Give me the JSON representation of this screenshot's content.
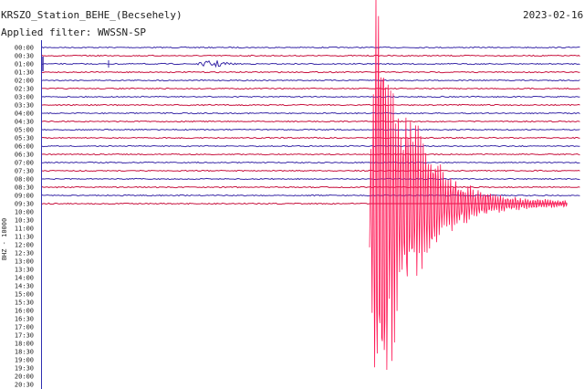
{
  "header": {
    "title": "KRSZO_Station_BEHE_(Becsehely)",
    "date": "2023-02-16",
    "filter": "Applied filter: WWSSN-SP"
  },
  "axis_label": "BHZ - 10000",
  "rows": [
    "00:00",
    "00:30",
    "01:00",
    "01:30",
    "02:00",
    "02:30",
    "03:00",
    "03:30",
    "04:00",
    "04:30",
    "05:00",
    "05:30",
    "06:00",
    "06:30",
    "07:00",
    "07:30",
    "08:00",
    "08:30",
    "09:00",
    "09:30",
    "10:00",
    "10:30",
    "11:00",
    "11:30",
    "12:00",
    "12:30",
    "13:00",
    "13:30",
    "14:00",
    "14:30",
    "15:00",
    "15:30",
    "16:00",
    "16:30",
    "17:00",
    "17:30",
    "18:00",
    "18:30",
    "19:00",
    "19:30",
    "20:00",
    "20:30"
  ]
}
